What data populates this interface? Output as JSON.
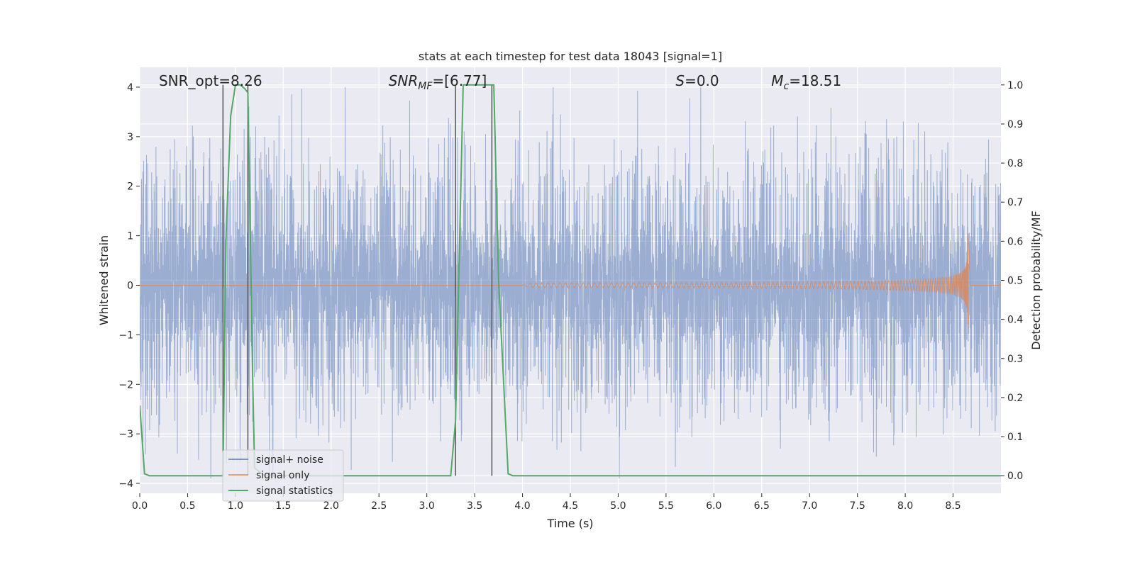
{
  "chart_data": {
    "type": "line",
    "title": "stats at each timestep for test data 18043 [signal=1]",
    "xlabel": "Time (s)",
    "ylabel_left": "Whitened strain",
    "ylabel_right": "Detection probability/MF",
    "xlim": [
      0.0,
      9.0
    ],
    "ylim_left": [
      -4.2,
      4.4
    ],
    "ylim_right": [
      -0.045,
      1.045
    ],
    "x_ticks": [
      "0.0",
      "0.5",
      "1.0",
      "1.5",
      "2.0",
      "2.5",
      "3.0",
      "3.5",
      "4.0",
      "4.5",
      "5.0",
      "5.5",
      "6.0",
      "6.5",
      "7.0",
      "7.5",
      "8.0",
      "8.5"
    ],
    "y_ticks_left": [
      "−4",
      "−3",
      "−2",
      "−1",
      "0",
      "1",
      "2",
      "3",
      "4"
    ],
    "y_ticks_right": [
      "0.0",
      "0.1",
      "0.2",
      "0.3",
      "0.4",
      "0.5",
      "0.6",
      "0.7",
      "0.8",
      "0.9",
      "1.0"
    ],
    "grid": true,
    "legend_position": "lower-left",
    "annotations": [
      {
        "id": "snr-opt",
        "text": "SNR_opt=8.26",
        "x": 0.2
      },
      {
        "id": "snr-mf-main",
        "text": "SNR",
        "sub": "MF",
        "tail": "=[6.77]",
        "x": 2.6
      },
      {
        "id": "s-main",
        "text": "S",
        "tail": "=0.0",
        "x": 5.6
      },
      {
        "id": "mc-main",
        "text": "M",
        "sub": "c",
        "tail": "=18.51",
        "x": 6.6
      }
    ],
    "series": [
      {
        "name": "signal+ noise",
        "color": "#4c72b0",
        "axis": "left",
        "description": "whitened noise trace, amplitude roughly ±2.5 with peaks to ±4",
        "range_x": [
          0.0,
          9.0
        ],
        "amplitude": 2.5
      },
      {
        "name": "signal only",
        "color": "#dd8452",
        "axis": "left",
        "description": "chirp waveform growing in amplitude and frequency toward merger",
        "range_x": [
          4.0,
          8.68
        ],
        "peak_amplitude": 1.45,
        "merger_time": 8.66
      },
      {
        "name": "signal statistics",
        "color": "#55a868",
        "axis": "right",
        "x": [
          0.0,
          0.05,
          0.1,
          0.15,
          0.2,
          0.8,
          0.87,
          0.9,
          0.95,
          1.0,
          1.05,
          1.1,
          1.13,
          1.15,
          1.18,
          1.2,
          1.3,
          2.3,
          3.0,
          3.15,
          3.25,
          3.3,
          3.38,
          3.45,
          3.55,
          3.65,
          3.7,
          3.75,
          3.85,
          3.9,
          5.0,
          9.0
        ],
        "values": [
          0.18,
          0.005,
          0.0,
          0.0,
          0.0,
          0.0,
          0.0,
          0.6,
          0.92,
          1.0,
          1.0,
          0.99,
          0.98,
          0.7,
          0.25,
          0.02,
          0.0,
          0.0,
          0.0,
          0.0,
          0.0,
          0.14,
          1.0,
          1.0,
          1.0,
          1.0,
          1.0,
          0.5,
          0.005,
          0.0,
          0.0,
          0.0
        ]
      }
    ],
    "vertical_markers": {
      "color": "#555555",
      "x": [
        0.87,
        1.13,
        3.3,
        3.68
      ],
      "y_top_right": 1.0,
      "y_bottom_right": 0.0
    }
  }
}
